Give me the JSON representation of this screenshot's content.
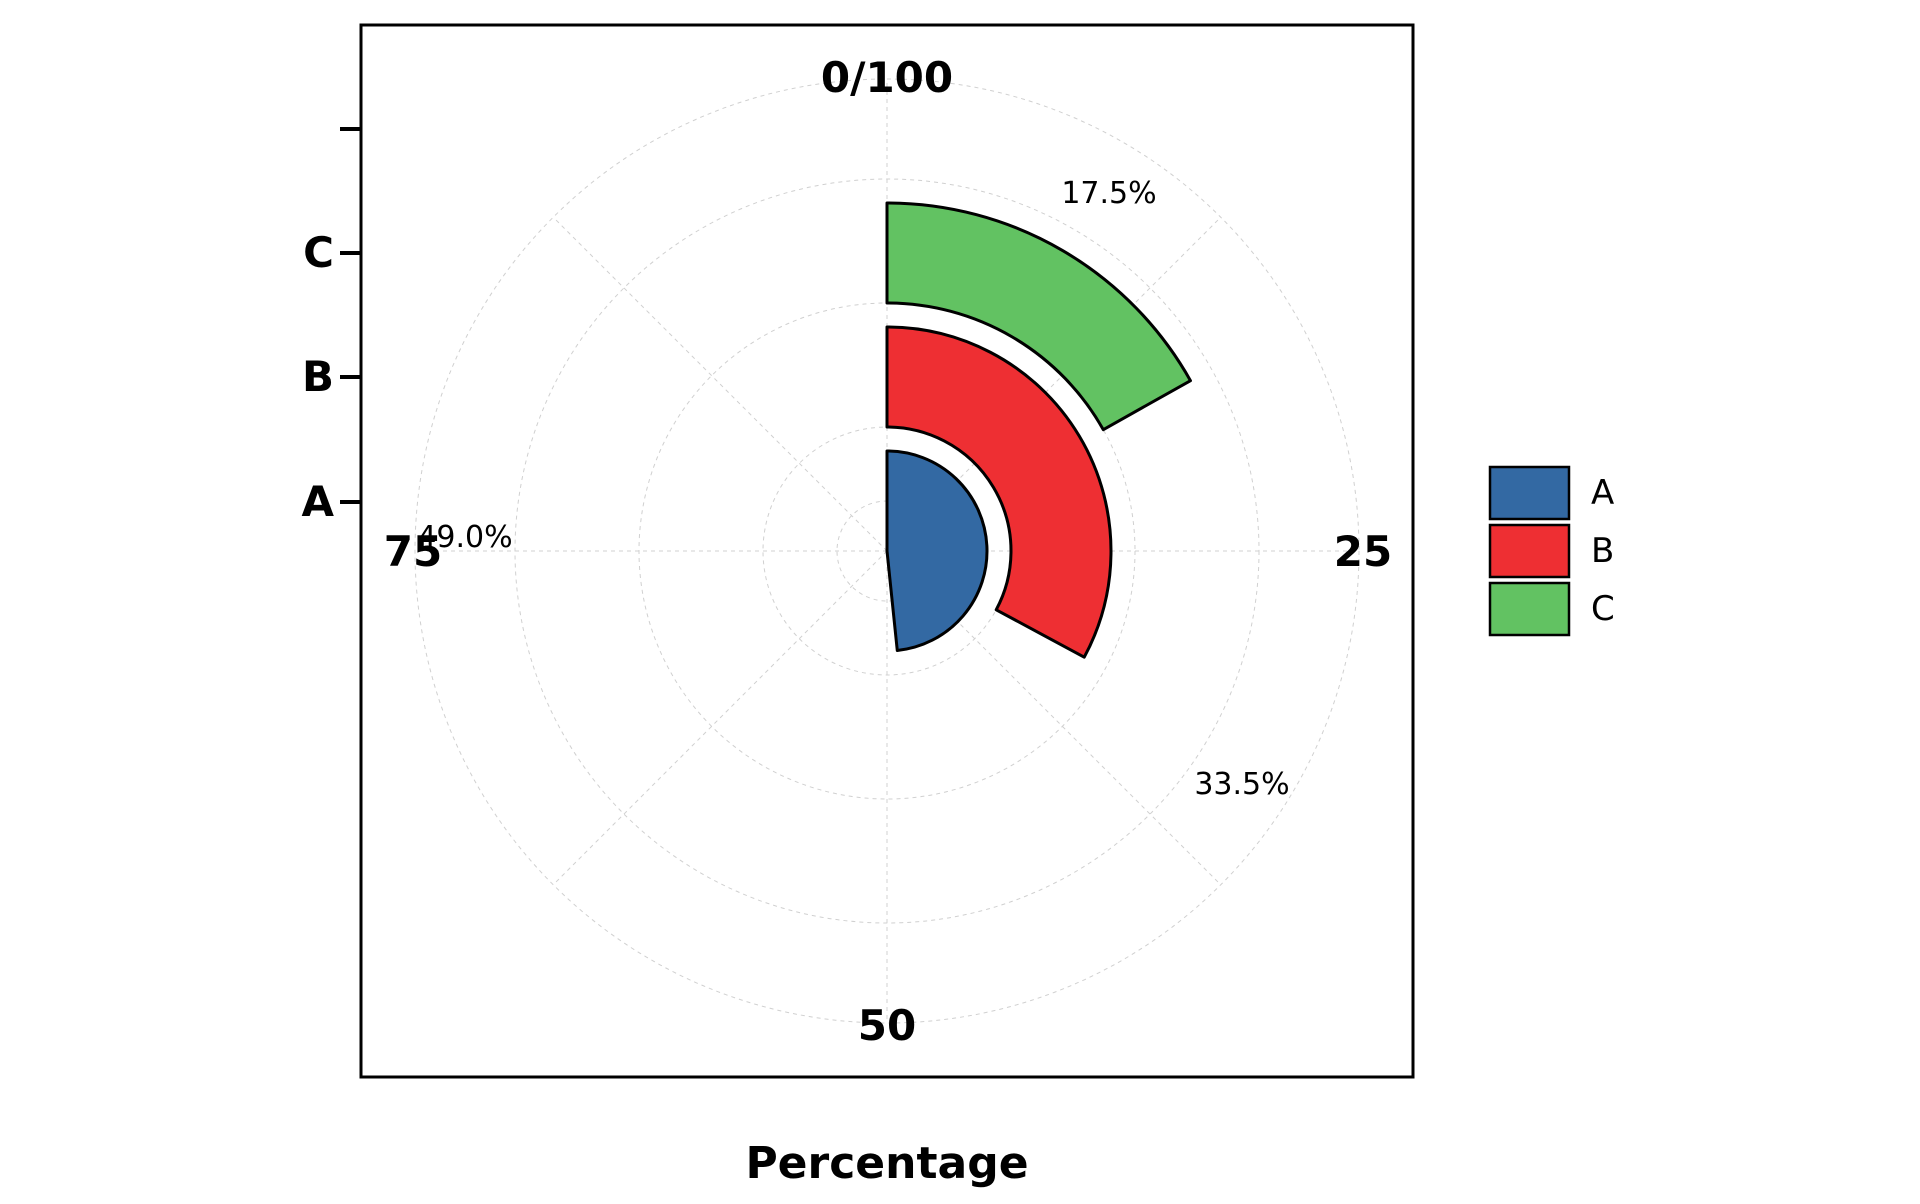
{
  "chart_data": {
    "type": "radial-bar",
    "title": "",
    "xlabel": "Percentage",
    "ylabel": "",
    "angle_axis": {
      "range": [
        0,
        100
      ],
      "ticks": [
        0,
        25,
        50,
        75
      ],
      "tick_labels": [
        "0/100",
        "25",
        "50",
        "75"
      ],
      "direction": "clockwise",
      "start": "top"
    },
    "radial_axis": {
      "tick_labels": [
        "A",
        "B",
        "C",
        ""
      ]
    },
    "categories": [
      "A",
      "B",
      "C"
    ],
    "values": [
      49.0,
      33.5,
      17.5
    ],
    "value_labels": [
      "49.0%",
      "33.5%",
      "17.5%"
    ],
    "colors": [
      "#3369a3",
      "#ee2f33",
      "#62c262"
    ],
    "legend": {
      "placement": "right",
      "entries": [
        "A",
        "B",
        "C"
      ]
    },
    "grid": true
  }
}
